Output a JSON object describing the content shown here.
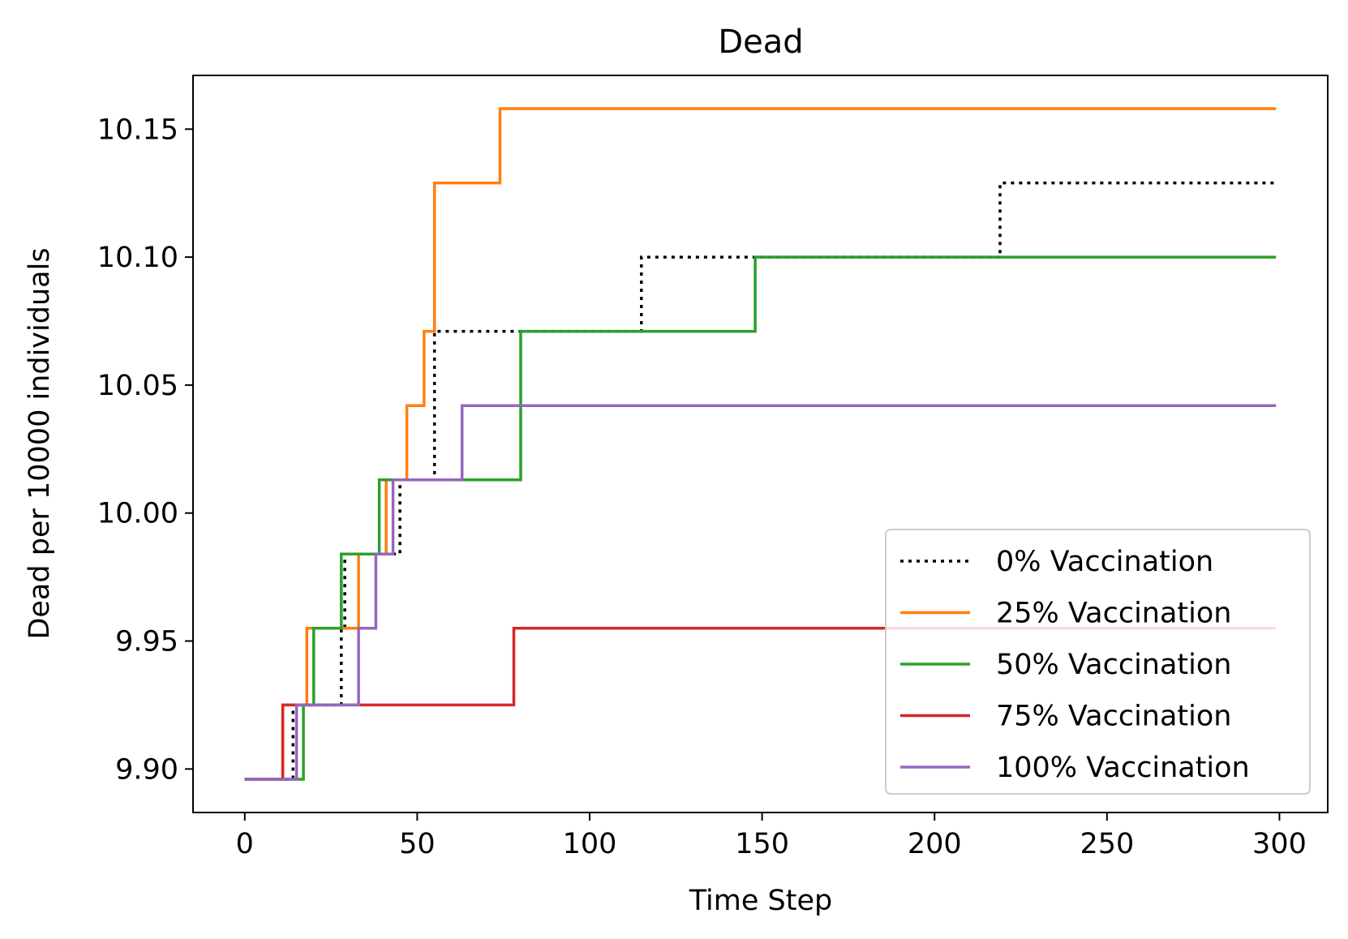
{
  "chart_data": {
    "type": "line",
    "title": "Dead",
    "xlabel": "Time Step",
    "ylabel": "Dead per 10000 individuals",
    "xlim": [
      -15,
      314
    ],
    "ylim": [
      9.883,
      10.171
    ],
    "xticks": [
      0,
      50,
      100,
      150,
      200,
      250,
      300
    ],
    "yticks": [
      9.9,
      9.95,
      10.0,
      10.05,
      10.1,
      10.15
    ],
    "ytick_labels": [
      "9.90",
      "9.95",
      "10.00",
      "10.05",
      "10.10",
      "10.15"
    ],
    "xtick_labels": [
      "0",
      "50",
      "100",
      "150",
      "200",
      "250",
      "300"
    ],
    "grid": false,
    "legend_position": "lower-right",
    "series": [
      {
        "name": "0% Vaccination",
        "color": "#000000",
        "style": "dotted",
        "steps": [
          [
            0,
            9.896
          ],
          [
            14,
            9.925
          ],
          [
            28,
            9.955
          ],
          [
            29,
            9.984
          ],
          [
            45,
            10.013
          ],
          [
            55,
            10.071
          ],
          [
            115,
            10.1
          ],
          [
            219,
            10.129
          ],
          [
            299,
            10.129
          ]
        ]
      },
      {
        "name": "25% Vaccination",
        "color": "#ff7f0e",
        "style": "solid",
        "steps": [
          [
            0,
            9.896
          ],
          [
            11,
            9.925
          ],
          [
            18,
            9.955
          ],
          [
            33,
            9.984
          ],
          [
            41,
            10.013
          ],
          [
            47,
            10.042
          ],
          [
            52,
            10.071
          ],
          [
            55,
            10.129
          ],
          [
            74,
            10.158
          ],
          [
            299,
            10.158
          ]
        ]
      },
      {
        "name": "50% Vaccination",
        "color": "#2ca02c",
        "style": "solid",
        "steps": [
          [
            0,
            9.896
          ],
          [
            17,
            9.925
          ],
          [
            20,
            9.955
          ],
          [
            28,
            9.984
          ],
          [
            39,
            10.013
          ],
          [
            80,
            10.071
          ],
          [
            148,
            10.1
          ],
          [
            299,
            10.1
          ]
        ]
      },
      {
        "name": "75% Vaccination",
        "color": "#d62728",
        "style": "solid",
        "steps": [
          [
            0,
            9.896
          ],
          [
            11,
            9.925
          ],
          [
            78,
            9.955
          ],
          [
            299,
            9.955
          ]
        ]
      },
      {
        "name": "100% Vaccination",
        "color": "#9467bd",
        "style": "solid",
        "steps": [
          [
            0,
            9.896
          ],
          [
            15,
            9.925
          ],
          [
            33,
            9.955
          ],
          [
            38,
            9.984
          ],
          [
            43,
            10.013
          ],
          [
            63,
            10.042
          ],
          [
            299,
            10.042
          ]
        ]
      }
    ]
  }
}
